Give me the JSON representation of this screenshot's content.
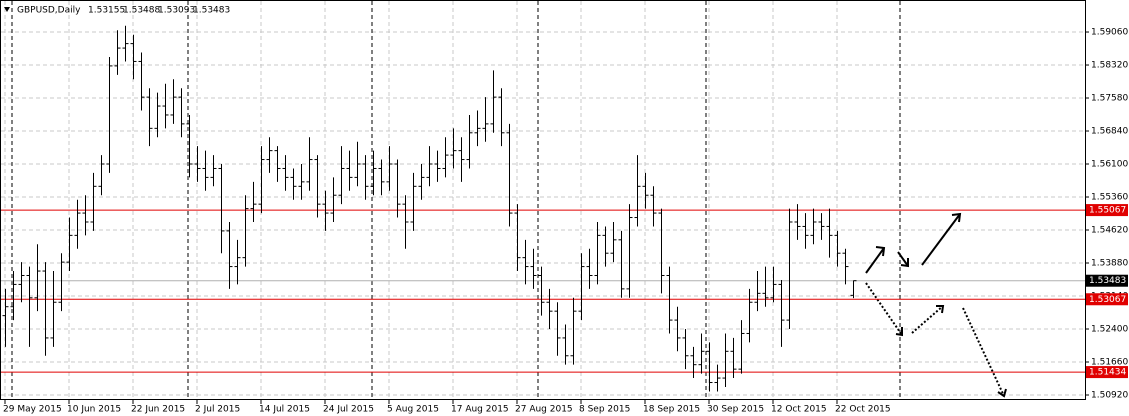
{
  "chart_data": {
    "type": "ohlc",
    "symbol": "GBPUSD,Daily",
    "color": "#000000",
    "ylim": [
      1.50808,
      1.59778
    ],
    "yticks": [
      {
        "value": 1.5906,
        "label": "1.59060"
      },
      {
        "value": 1.5832,
        "label": "1.58320"
      },
      {
        "value": 1.5758,
        "label": "1.57580"
      },
      {
        "value": 1.5684,
        "label": "1.56840"
      },
      {
        "value": 1.561,
        "label": "1.56100"
      },
      {
        "value": 1.5536,
        "label": "1.55360"
      },
      {
        "value": 1.5462,
        "label": "1.54620"
      },
      {
        "value": 1.5388,
        "label": "1.53880"
      },
      {
        "value": 1.5314,
        "label": "1.53140"
      },
      {
        "value": 1.524,
        "label": "1.52400"
      },
      {
        "value": 1.5166,
        "label": "1.51660"
      },
      {
        "value": 1.5092,
        "label": "1.50920"
      }
    ],
    "grid": true,
    "levels": [
      {
        "value": 1.55067,
        "color": "#e00000"
      },
      {
        "value": 1.53067,
        "color": "#e00000"
      },
      {
        "value": 1.51434,
        "color": "#e00000"
      }
    ],
    "categories": [
      "29 May 2015",
      null,
      null,
      null,
      null,
      null,
      null,
      null,
      "10 Jun 2015",
      null,
      null,
      null,
      null,
      null,
      null,
      null,
      "22 Jun 2015",
      null,
      null,
      null,
      null,
      null,
      null,
      null,
      "2 Jul 2015",
      null,
      null,
      null,
      null,
      null,
      null,
      null,
      "14 Jul 2015",
      null,
      null,
      null,
      null,
      null,
      null,
      null,
      "24 Jul 2015",
      null,
      null,
      null,
      null,
      null,
      null,
      null,
      "5 Aug 2015",
      null,
      null,
      null,
      null,
      null,
      null,
      null,
      "17 Aug 2015",
      null,
      null,
      null,
      null,
      null,
      null,
      null,
      "27 Aug 2015",
      null,
      null,
      null,
      null,
      null,
      null,
      null,
      "8 Sep 2015",
      null,
      null,
      null,
      null,
      null,
      null,
      null,
      "18 Sep 2015",
      null,
      null,
      null,
      null,
      null,
      null,
      null,
      "30 Sep 2015",
      null,
      null,
      null,
      null,
      null,
      null,
      null,
      "12 Oct 2015",
      null,
      null,
      null,
      null,
      null,
      null,
      null,
      "22 Oct 2015",
      null,
      null
    ],
    "ohlc": [
      [
        1.527,
        1.533,
        1.52,
        1.529
      ],
      [
        1.529,
        1.537,
        1.526,
        1.534
      ],
      [
        1.534,
        1.539,
        1.53,
        1.536
      ],
      [
        1.536,
        1.538,
        1.52,
        1.531
      ],
      [
        1.531,
        1.543,
        1.528,
        1.537
      ],
      [
        1.537,
        1.539,
        1.518,
        1.522
      ],
      [
        1.522,
        1.537,
        1.52,
        1.53
      ],
      [
        1.53,
        1.541,
        1.528,
        1.539
      ],
      [
        1.539,
        1.549,
        1.537,
        1.545
      ],
      [
        1.545,
        1.553,
        1.542,
        1.55
      ],
      [
        1.55,
        1.554,
        1.545,
        1.548
      ],
      [
        1.548,
        1.559,
        1.546,
        1.556
      ],
      [
        1.556,
        1.563,
        1.554,
        1.561
      ],
      [
        1.561,
        1.585,
        1.559,
        1.583
      ],
      [
        1.583,
        1.591,
        1.581,
        1.587
      ],
      [
        1.587,
        1.592,
        1.584,
        1.588
      ],
      [
        1.588,
        1.59,
        1.58,
        1.584
      ],
      [
        1.584,
        1.586,
        1.573,
        1.576
      ],
      [
        1.576,
        1.578,
        1.565,
        1.569
      ],
      [
        1.569,
        1.577,
        1.567,
        1.574
      ],
      [
        1.574,
        1.579,
        1.569,
        1.572
      ],
      [
        1.572,
        1.58,
        1.57,
        1.576
      ],
      [
        1.576,
        1.578,
        1.567,
        1.57
      ],
      [
        1.57,
        1.572,
        1.558,
        1.561
      ],
      [
        1.561,
        1.565,
        1.557,
        1.56
      ],
      [
        1.56,
        1.564,
        1.555,
        1.558
      ],
      [
        1.558,
        1.563,
        1.556,
        1.56
      ],
      [
        1.56,
        1.561,
        1.541,
        1.546
      ],
      [
        1.546,
        1.548,
        1.533,
        1.538
      ],
      [
        1.538,
        1.544,
        1.534,
        1.54
      ],
      [
        1.54,
        1.554,
        1.538,
        1.551
      ],
      [
        1.551,
        1.557,
        1.548,
        1.552
      ],
      [
        1.552,
        1.565,
        1.55,
        1.562
      ],
      [
        1.562,
        1.567,
        1.559,
        1.564
      ],
      [
        1.564,
        1.565,
        1.557,
        1.56
      ],
      [
        1.56,
        1.563,
        1.555,
        1.558
      ],
      [
        1.558,
        1.56,
        1.553,
        1.556
      ],
      [
        1.556,
        1.561,
        1.553,
        1.557
      ],
      [
        1.557,
        1.567,
        1.555,
        1.562
      ],
      [
        1.562,
        1.563,
        1.549,
        1.552
      ],
      [
        1.552,
        1.555,
        1.546,
        1.55
      ],
      [
        1.55,
        1.558,
        1.548,
        1.554
      ],
      [
        1.554,
        1.565,
        1.552,
        1.56
      ],
      [
        1.56,
        1.564,
        1.555,
        1.558
      ],
      [
        1.558,
        1.566,
        1.556,
        1.561
      ],
      [
        1.561,
        1.563,
        1.553,
        1.556
      ],
      [
        1.556,
        1.564,
        1.554,
        1.56
      ],
      [
        1.56,
        1.562,
        1.554,
        1.557
      ],
      [
        1.557,
        1.565,
        1.555,
        1.561
      ],
      [
        1.561,
        1.562,
        1.549,
        1.552
      ],
      [
        1.552,
        1.554,
        1.542,
        1.548
      ],
      [
        1.548,
        1.559,
        1.546,
        1.556
      ],
      [
        1.556,
        1.561,
        1.553,
        1.558
      ],
      [
        1.558,
        1.565,
        1.556,
        1.561
      ],
      [
        1.561,
        1.564,
        1.557,
        1.56
      ],
      [
        1.56,
        1.567,
        1.558,
        1.563
      ],
      [
        1.563,
        1.569,
        1.56,
        1.564
      ],
      [
        1.564,
        1.567,
        1.557,
        1.562
      ],
      [
        1.562,
        1.572,
        1.56,
        1.568
      ],
      [
        1.568,
        1.573,
        1.565,
        1.569
      ],
      [
        1.569,
        1.576,
        1.566,
        1.57
      ],
      [
        1.57,
        1.582,
        1.568,
        1.576
      ],
      [
        1.576,
        1.578,
        1.565,
        1.568
      ],
      [
        1.568,
        1.57,
        1.547,
        1.55
      ],
      [
        1.55,
        1.552,
        1.537,
        1.54
      ],
      [
        1.54,
        1.544,
        1.534,
        1.538
      ],
      [
        1.538,
        1.542,
        1.533,
        1.536
      ],
      [
        1.536,
        1.538,
        1.527,
        1.53
      ],
      [
        1.53,
        1.533,
        1.524,
        1.528
      ],
      [
        1.528,
        1.53,
        1.518,
        1.522
      ],
      [
        1.522,
        1.525,
        1.516,
        1.518
      ],
      [
        1.518,
        1.531,
        1.516,
        1.528
      ],
      [
        1.528,
        1.541,
        1.526,
        1.538
      ],
      [
        1.538,
        1.542,
        1.533,
        1.536
      ],
      [
        1.536,
        1.548,
        1.534,
        1.545
      ],
      [
        1.545,
        1.547,
        1.538,
        1.541
      ],
      [
        1.541,
        1.548,
        1.539,
        1.544
      ],
      [
        1.544,
        1.546,
        1.531,
        1.533
      ],
      [
        1.533,
        1.552,
        1.531,
        1.549
      ],
      [
        1.549,
        1.563,
        1.547,
        1.556
      ],
      [
        1.556,
        1.559,
        1.551,
        1.554
      ],
      [
        1.554,
        1.556,
        1.547,
        1.55
      ],
      [
        1.55,
        1.551,
        1.532,
        1.536
      ],
      [
        1.536,
        1.538,
        1.523,
        1.526
      ],
      [
        1.526,
        1.529,
        1.519,
        1.522
      ],
      [
        1.522,
        1.524,
        1.515,
        1.518
      ],
      [
        1.518,
        1.52,
        1.513,
        1.516
      ],
      [
        1.516,
        1.523,
        1.514,
        1.519
      ],
      [
        1.519,
        1.521,
        1.51,
        1.512
      ],
      [
        1.512,
        1.516,
        1.51,
        1.513
      ],
      [
        1.513,
        1.523,
        1.511,
        1.519
      ],
      [
        1.519,
        1.522,
        1.513,
        1.515
      ],
      [
        1.515,
        1.526,
        1.514,
        1.523
      ],
      [
        1.523,
        1.533,
        1.521,
        1.53
      ],
      [
        1.53,
        1.537,
        1.528,
        1.532
      ],
      [
        1.532,
        1.538,
        1.529,
        1.531
      ],
      [
        1.531,
        1.538,
        1.53,
        1.534
      ],
      [
        1.534,
        1.535,
        1.52,
        1.526
      ],
      [
        1.526,
        1.551,
        1.524,
        1.548
      ],
      [
        1.548,
        1.552,
        1.544,
        1.547
      ],
      [
        1.547,
        1.55,
        1.542,
        1.545
      ],
      [
        1.545,
        1.551,
        1.543,
        1.548
      ],
      [
        1.548,
        1.55,
        1.544,
        1.547
      ],
      [
        1.547,
        1.551,
        1.54,
        1.545
      ],
      [
        1.545,
        1.546,
        1.538,
        1.541
      ],
      [
        1.541,
        1.542,
        1.534,
        1.538
      ],
      [
        1.53155,
        1.53488,
        1.53093,
        1.53483
      ]
    ]
  }
}
